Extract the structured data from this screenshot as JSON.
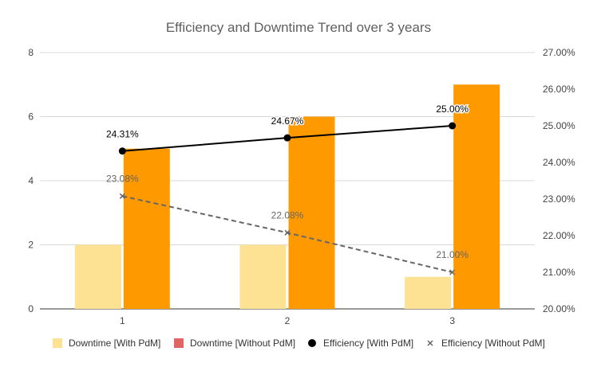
{
  "chart_data": {
    "type": "bar",
    "title": "Efficiency and Downtime Trend over 3 years",
    "categories": [
      "1",
      "2",
      "3"
    ],
    "y_left": {
      "min": 0,
      "max": 8,
      "ticks": [
        "0",
        "2",
        "4",
        "6",
        "8"
      ]
    },
    "y_right": {
      "min": 20,
      "max": 27,
      "ticks": [
        "20.00%",
        "21.00%",
        "22.00%",
        "23.00%",
        "24.00%",
        "25.00%",
        "26.00%",
        "27.00%"
      ]
    },
    "grid": "horizontal",
    "legend_position": "bottom",
    "series": [
      {
        "name": "Downtime [With PdM]",
        "type": "bar",
        "axis": "left",
        "color": "#fde293",
        "values": [
          2,
          2,
          1
        ]
      },
      {
        "name": "Downtime [Without PdM]",
        "type": "bar",
        "axis": "left",
        "color": "#ff9900",
        "legend_color": "#e06666",
        "values": [
          5,
          6,
          7
        ]
      },
      {
        "name": "Efficiency [With PdM]",
        "type": "line",
        "axis": "right",
        "color": "#000000",
        "marker": "dot",
        "values": [
          24.31,
          24.67,
          25.0
        ],
        "labels": [
          "24.31%",
          "24.67%",
          "25.00%"
        ]
      },
      {
        "name": "Efficiency [Without PdM]",
        "type": "line",
        "axis": "right",
        "color": "#666666",
        "marker": "x",
        "dashed": true,
        "values": [
          23.08,
          22.08,
          21.0
        ],
        "labels": [
          "23.08%",
          "22.08%",
          "21.00%"
        ]
      }
    ]
  }
}
